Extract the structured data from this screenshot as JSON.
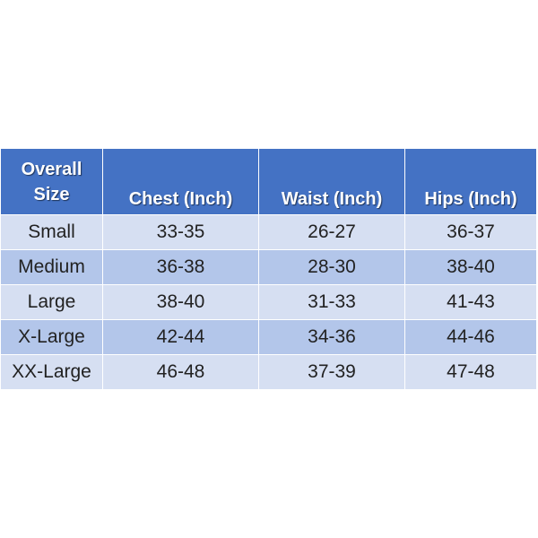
{
  "colors": {
    "header_bg": "#4472c4",
    "row_light": "#d6dff2",
    "row_dark": "#b3c6ea",
    "header_text": "#ffffff",
    "body_text": "#222222"
  },
  "table": {
    "headers": [
      "Overall\nSize",
      "Chest  (Inch)",
      "Waist (Inch)",
      "Hips (Inch)"
    ],
    "rows": [
      [
        "Small",
        "33-35",
        "26-27",
        "36-37"
      ],
      [
        "Medium",
        "36-38",
        "28-30",
        "38-40"
      ],
      [
        "Large",
        "38-40",
        "31-33",
        "41-43"
      ],
      [
        "X-Large",
        "42-44",
        "34-36",
        "44-46"
      ],
      [
        "XX-Large",
        "46-48",
        "37-39",
        "47-48"
      ]
    ]
  }
}
